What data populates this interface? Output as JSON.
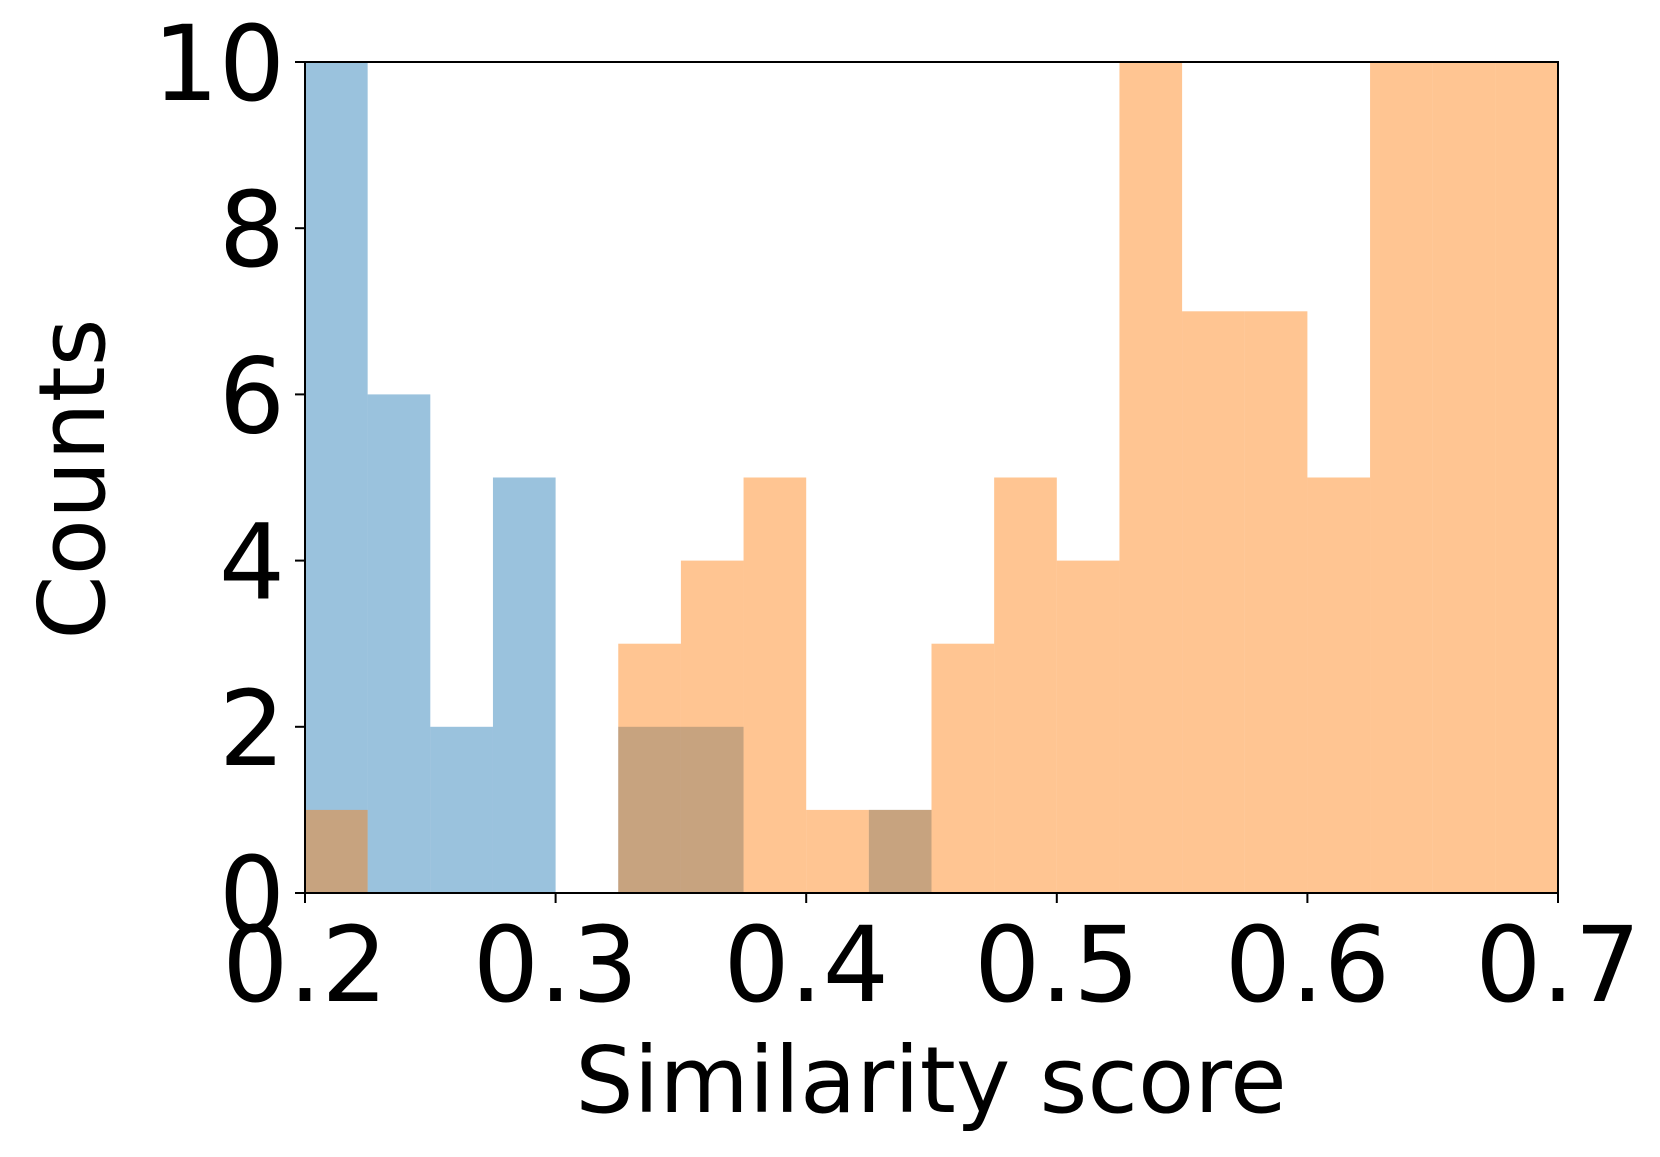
{
  "chart_data": {
    "type": "histogram",
    "xlabel": "Similarity score",
    "ylabel": "Counts",
    "bins": [
      0.2,
      0.225,
      0.25,
      0.275,
      0.3,
      0.325,
      0.35,
      0.375,
      0.4,
      0.425,
      0.45,
      0.475,
      0.5,
      0.525,
      0.55,
      0.575,
      0.6,
      0.625,
      0.65,
      0.675,
      0.7
    ],
    "series": [
      {
        "color": "#1f77b4",
        "values": [
          10,
          6,
          2,
          5,
          0,
          2,
          2,
          0,
          0,
          1,
          0,
          0,
          0,
          0,
          0,
          0,
          0,
          0,
          0,
          0
        ]
      },
      {
        "color": "#ff7f0e",
        "values": [
          1,
          0,
          0,
          0,
          0,
          3,
          4,
          5,
          1,
          1,
          3,
          5,
          4,
          10,
          7,
          7,
          5,
          10,
          10,
          10
        ]
      }
    ],
    "opacity": 0.45,
    "xlim": [
      0.2,
      0.7
    ],
    "ylim": [
      0,
      10
    ],
    "xticks": [
      0.2,
      0.3,
      0.4,
      0.5,
      0.6,
      0.7
    ],
    "yticks": [
      0,
      2,
      4,
      6,
      8,
      10
    ]
  }
}
